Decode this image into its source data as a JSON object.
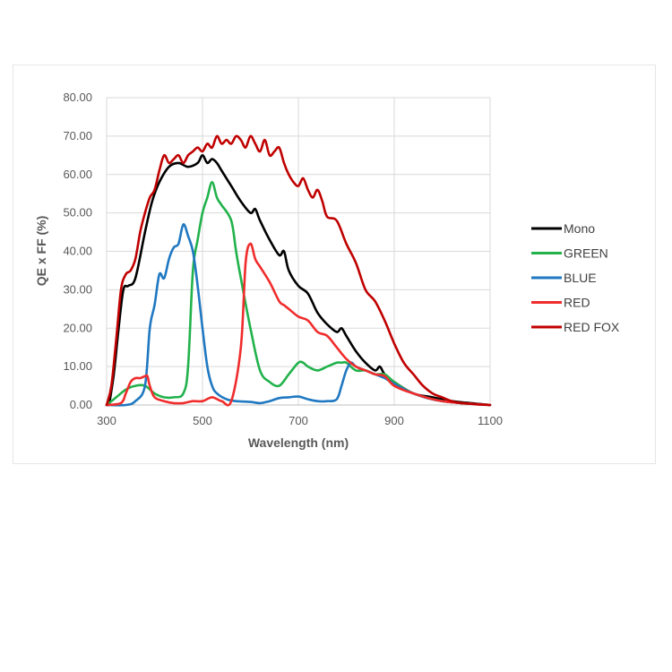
{
  "chart_data": {
    "type": "line",
    "xlabel": "Wavelength (nm)",
    "ylabel": "QE x FF (%)",
    "xlim": [
      300,
      1100
    ],
    "ylim": [
      0,
      80
    ],
    "x_ticks": [
      "300",
      "500",
      "700",
      "900",
      "1100"
    ],
    "y_ticks": [
      "0.00",
      "10.00",
      "20.00",
      "30.00",
      "40.00",
      "50.00",
      "60.00",
      "70.00",
      "80.00"
    ],
    "grid": "horizontal and vertical",
    "legend": "right",
    "series": [
      {
        "name": "Mono",
        "color": "#000000",
        "x": [
          305,
          315,
          325,
          335,
          345,
          360,
          380,
          395,
          410,
          430,
          450,
          470,
          490,
          500,
          510,
          520,
          530,
          540,
          560,
          580,
          600,
          610,
          620,
          640,
          660,
          670,
          680,
          700,
          720,
          740,
          760,
          780,
          790,
          800,
          820,
          840,
          860,
          870,
          880,
          900,
          940,
          980,
          1020,
          1060,
          1100
        ],
        "y": [
          0,
          8,
          20,
          30,
          31,
          33,
          45,
          53,
          58,
          62,
          63,
          62,
          63,
          65,
          63,
          64,
          63,
          61,
          57,
          53,
          50,
          51,
          48,
          43,
          39,
          40,
          35,
          31,
          29,
          24,
          21,
          19,
          20,
          18,
          14,
          11,
          9,
          10,
          8,
          6,
          3,
          2,
          1,
          0.5,
          0
        ]
      },
      {
        "name": "GREEN",
        "color": "#21b24b",
        "x": [
          300,
          320,
          340,
          360,
          380,
          400,
          420,
          440,
          460,
          470,
          480,
          490,
          500,
          510,
          520,
          530,
          540,
          560,
          570,
          580,
          600,
          620,
          640,
          660,
          680,
          700,
          710,
          720,
          740,
          760,
          780,
          790,
          800,
          820,
          840,
          860,
          880,
          900,
          940,
          1000,
          1100
        ],
        "y": [
          0,
          2,
          4,
          5,
          5,
          3,
          2,
          2,
          3,
          10,
          35,
          43,
          50,
          54,
          58,
          54,
          52,
          48,
          40,
          33,
          20,
          9,
          6,
          5,
          8,
          11,
          11,
          10,
          9,
          10,
          11,
          11,
          11,
          9,
          9,
          8,
          8,
          6,
          3,
          1,
          0
        ]
      },
      {
        "name": "BLUE",
        "color": "#1f78c1",
        "x": [
          300,
          340,
          360,
          380,
          390,
          400,
          410,
          420,
          430,
          440,
          450,
          460,
          470,
          480,
          490,
          500,
          510,
          520,
          530,
          550,
          570,
          600,
          620,
          640,
          660,
          680,
          700,
          720,
          740,
          760,
          780,
          790,
          800,
          810,
          820,
          840,
          860,
          880,
          900,
          940,
          1000,
          1100
        ],
        "y": [
          0,
          0,
          1,
          5,
          20,
          26,
          34,
          33,
          38,
          41,
          42,
          47,
          44,
          40,
          31,
          20,
          10,
          5,
          3,
          1.5,
          1,
          0.8,
          0.5,
          1,
          1.8,
          2,
          2.2,
          1.5,
          1,
          1,
          1.5,
          5,
          9,
          11,
          10,
          9,
          8,
          7,
          5.5,
          3,
          1,
          0
        ]
      },
      {
        "name": "RED",
        "color": "#f02c2c",
        "x": [
          300,
          330,
          340,
          350,
          360,
          370,
          380,
          385,
          390,
          400,
          420,
          440,
          460,
          480,
          500,
          520,
          540,
          560,
          580,
          590,
          600,
          610,
          620,
          640,
          660,
          670,
          680,
          700,
          720,
          740,
          760,
          780,
          800,
          820,
          840,
          860,
          880,
          900,
          940,
          1000,
          1100
        ],
        "y": [
          0,
          0.5,
          3,
          6,
          7,
          7,
          7.5,
          7.5,
          5,
          2,
          1,
          0.5,
          0.5,
          1,
          1,
          2,
          1,
          1,
          15,
          37,
          42,
          38,
          36,
          32,
          27,
          26,
          25,
          23,
          22,
          19,
          18,
          15,
          12,
          10,
          9,
          8,
          7.5,
          5,
          3,
          1,
          0
        ]
      },
      {
        "name": "RED FOX",
        "color": "#c00000",
        "x": [
          300,
          310,
          320,
          330,
          340,
          350,
          360,
          370,
          380,
          390,
          400,
          410,
          420,
          430,
          440,
          450,
          460,
          470,
          480,
          490,
          500,
          510,
          520,
          530,
          540,
          550,
          560,
          570,
          580,
          590,
          600,
          610,
          620,
          630,
          640,
          650,
          660,
          670,
          680,
          690,
          700,
          710,
          720,
          730,
          740,
          750,
          760,
          780,
          800,
          820,
          840,
          860,
          880,
          900,
          920,
          940,
          960,
          980,
          1000,
          1020,
          1040,
          1060,
          1080,
          1100
        ],
        "y": [
          0,
          5,
          17,
          30,
          34,
          35,
          38,
          45,
          50,
          54,
          56,
          61,
          65,
          63,
          64,
          65,
          63,
          65,
          66,
          67,
          66,
          68,
          67,
          70,
          68,
          69,
          68,
          70,
          69,
          67,
          70,
          68,
          66,
          69,
          65,
          66,
          67,
          63,
          60,
          58,
          57,
          59,
          56,
          54,
          56,
          53,
          49,
          48,
          42,
          37,
          30,
          27,
          22,
          16,
          11,
          8,
          5,
          3,
          2,
          1,
          0.5,
          0.3,
          0.1,
          0
        ]
      }
    ]
  }
}
